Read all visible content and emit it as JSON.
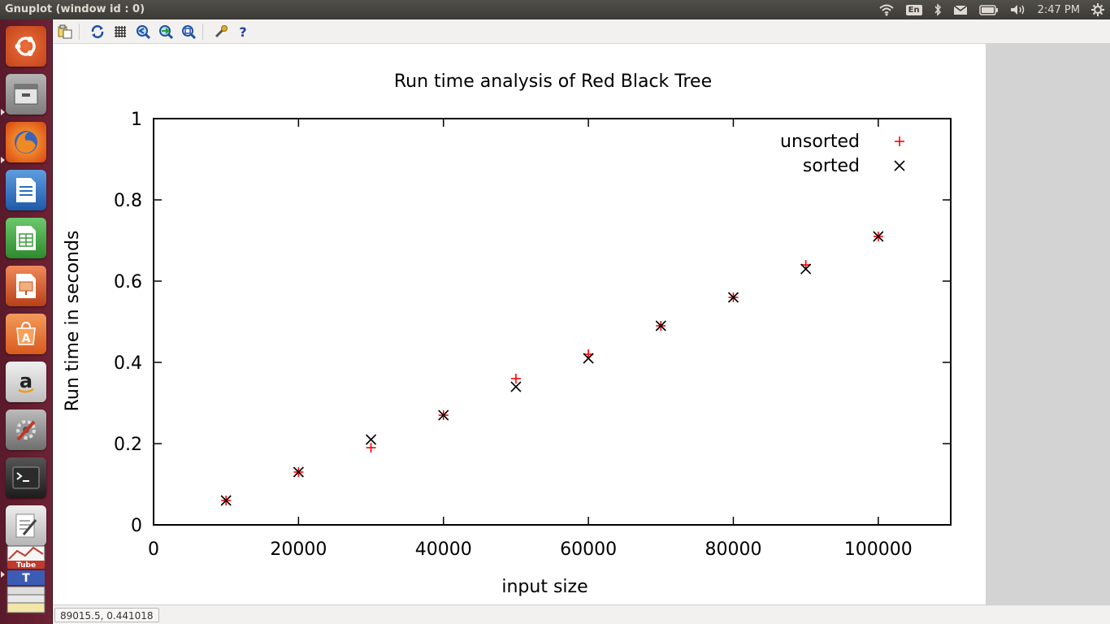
{
  "window": {
    "title": "Gnuplot (window id : 0)"
  },
  "tray": {
    "keyboard_layout": "En",
    "clock": "2:47 PM",
    "icons": [
      "wifi-icon",
      "bluetooth-icon",
      "mail-icon",
      "battery-icon",
      "volume-icon",
      "settings-gear-icon"
    ]
  },
  "launcher": {
    "items": [
      {
        "name": "ubuntu-dash",
        "color": "#e05a2b"
      },
      {
        "name": "files",
        "color": "#8a8a8a"
      },
      {
        "name": "firefox",
        "color": "#e66000"
      },
      {
        "name": "libreoffice-writer",
        "color": "#2a6ebb"
      },
      {
        "name": "libreoffice-calc",
        "color": "#3c9c3c"
      },
      {
        "name": "libreoffice-impress",
        "color": "#c9501e"
      },
      {
        "name": "ubuntu-software",
        "color": "#e8692b"
      },
      {
        "name": "amazon",
        "color": "#dddddd"
      },
      {
        "name": "system-settings",
        "color": "#9e9e9e"
      },
      {
        "name": "terminal",
        "color": "#2d2d2d"
      },
      {
        "name": "text-editor",
        "color": "#cfcfcf"
      },
      {
        "name": "stacked-apps",
        "color": "#c0392b"
      }
    ]
  },
  "toolbar": {
    "icons": [
      "copy-to-clipboard-icon",
      "replot-icon",
      "grid-icon",
      "zoom-previous-icon",
      "zoom-next-icon",
      "unzoom-icon",
      "preferences-icon",
      "help-icon"
    ],
    "help_glyph": "?"
  },
  "status": {
    "coordinates": "89015.5, 0.441018"
  },
  "chart_data": {
    "type": "scatter",
    "title": "Run time analysis of Red Black Tree",
    "xlabel": "input size",
    "ylabel": "Run time in seconds",
    "xlim": [
      0,
      110000
    ],
    "ylim": [
      0,
      1
    ],
    "xticks": [
      0,
      20000,
      40000,
      60000,
      80000,
      100000
    ],
    "yticks": [
      0,
      0.2,
      0.4,
      0.6,
      0.8,
      1
    ],
    "xtick_labels": [
      "0",
      "20000",
      "40000",
      "60000",
      "80000",
      "100000"
    ],
    "ytick_labels": [
      "0",
      "0.2",
      "0.4",
      "0.6",
      "0.8",
      "1"
    ],
    "legend_position": "top-right",
    "grid": false,
    "series": [
      {
        "name": "unsorted",
        "marker": "plus",
        "color": "#ff0000",
        "x": [
          10000,
          20000,
          30000,
          40000,
          50000,
          60000,
          70000,
          80000,
          90000,
          100000
        ],
        "y": [
          0.06,
          0.13,
          0.19,
          0.27,
          0.36,
          0.42,
          0.49,
          0.56,
          0.64,
          0.71
        ]
      },
      {
        "name": "sorted",
        "marker": "cross",
        "color": "#000000",
        "x": [
          10000,
          20000,
          30000,
          40000,
          50000,
          60000,
          70000,
          80000,
          90000,
          100000
        ],
        "y": [
          0.06,
          0.13,
          0.21,
          0.27,
          0.34,
          0.41,
          0.49,
          0.56,
          0.63,
          0.71
        ]
      }
    ]
  }
}
